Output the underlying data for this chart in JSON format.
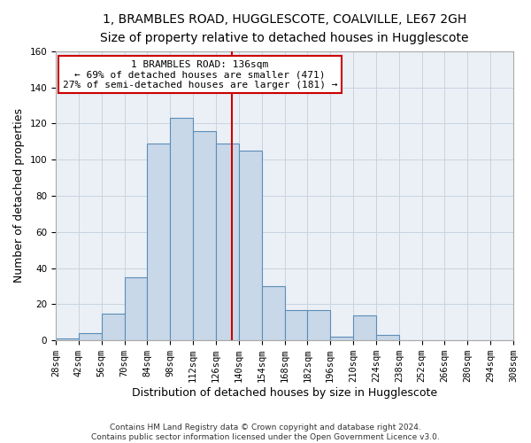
{
  "title_line1": "1, BRAMBLES ROAD, HUGGLESCOTE, COALVILLE, LE67 2GH",
  "title_line2": "Size of property relative to detached houses in Hugglescote",
  "xlabel": "Distribution of detached houses by size in Hugglescote",
  "ylabel": "Number of detached properties",
  "footnote": "Contains HM Land Registry data © Crown copyright and database right 2024.\nContains public sector information licensed under the Open Government Licence v3.0.",
  "bin_edges": [
    28,
    42,
    56,
    70,
    84,
    98,
    112,
    126,
    140,
    154,
    168,
    182,
    196,
    210,
    224,
    238,
    252,
    266,
    280,
    294,
    308
  ],
  "bar_heights": [
    1,
    4,
    15,
    35,
    109,
    123,
    116,
    109,
    105,
    30,
    17,
    17,
    2,
    14,
    3,
    0,
    0,
    0,
    0,
    0
  ],
  "bar_color": "#c8d8e8",
  "bar_edge_color": "#5b8db8",
  "vline_x": 136,
  "vline_color": "#cc0000",
  "annotation_line1": "1 BRAMBLES ROAD: 136sqm",
  "annotation_line2": "← 69% of detached houses are smaller (471)",
  "annotation_line3": "27% of semi-detached houses are larger (181) →",
  "annotation_box_color": "#cc0000",
  "ylim": [
    0,
    160
  ],
  "yticks": [
    0,
    20,
    40,
    60,
    80,
    100,
    120,
    140,
    160
  ],
  "grid_color": "#c8d4e0",
  "background_color": "#eaf0f6",
  "title_fontsize": 10,
  "subtitle_fontsize": 9.5,
  "axis_label_fontsize": 9,
  "tick_fontsize": 7.5,
  "annotation_fontsize": 8
}
